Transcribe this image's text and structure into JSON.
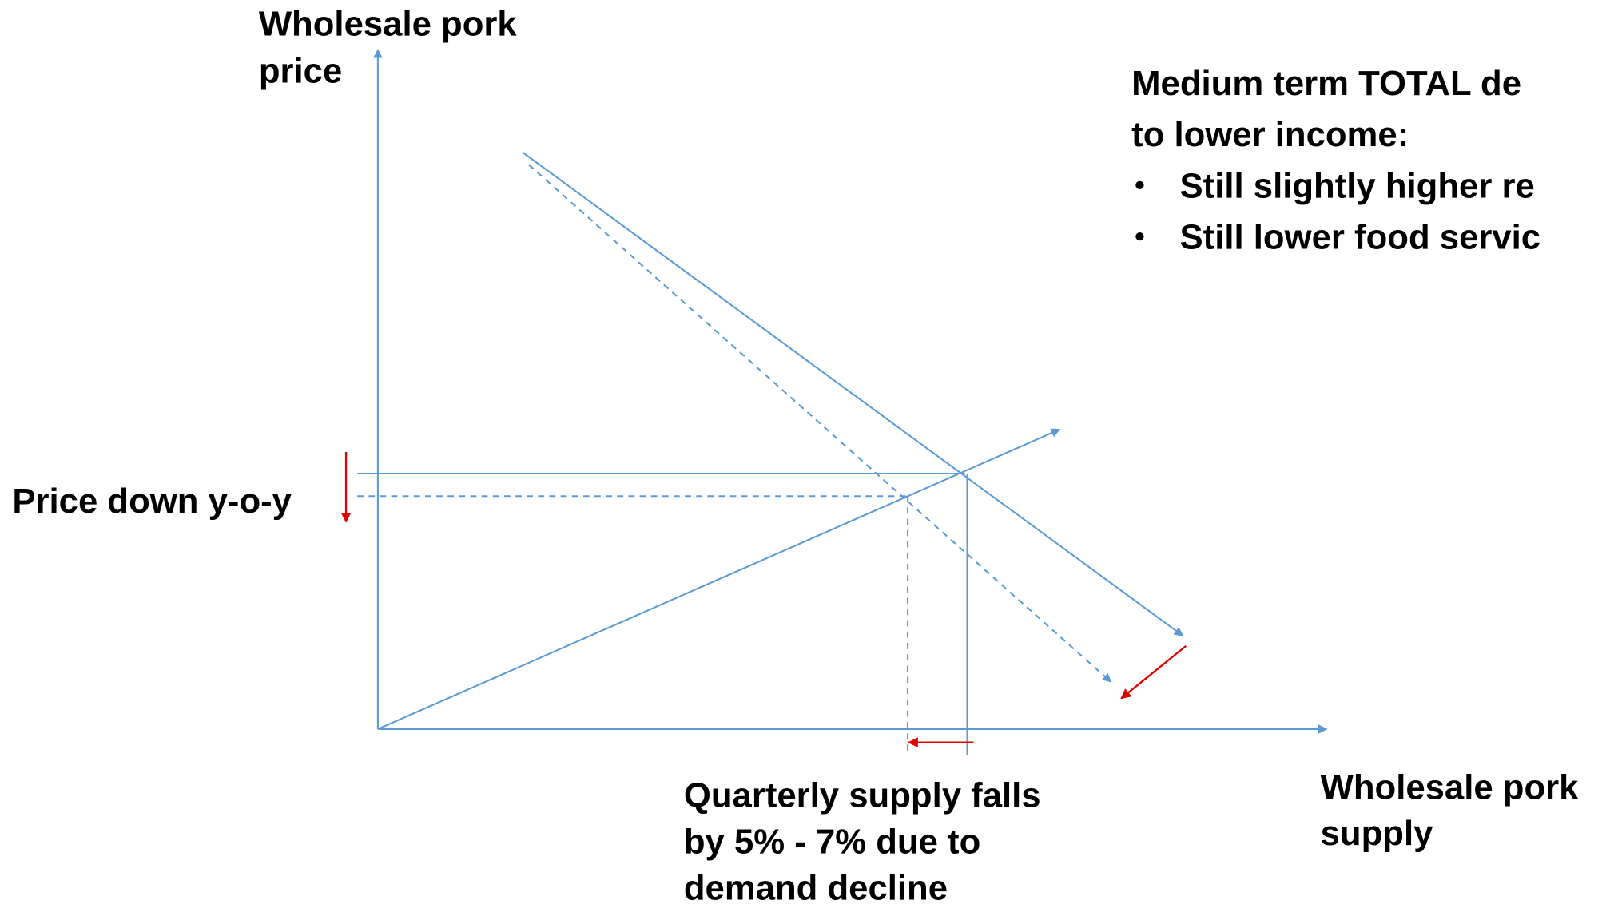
{
  "axes": {
    "y_label": [
      "Wholesale pork",
      "price"
    ],
    "x_label": [
      "Wholesale pork",
      "supply"
    ]
  },
  "annotations": {
    "price": "Price down y-o-y",
    "supply": [
      "Quarterly supply falls",
      "by 5% - 7% due to",
      "demand decline"
    ]
  },
  "note": {
    "heading": [
      "Medium term TOTAL de",
      "to lower income:"
    ],
    "bullets": [
      "Still slightly higher re",
      "Still lower food servic"
    ]
  }
}
